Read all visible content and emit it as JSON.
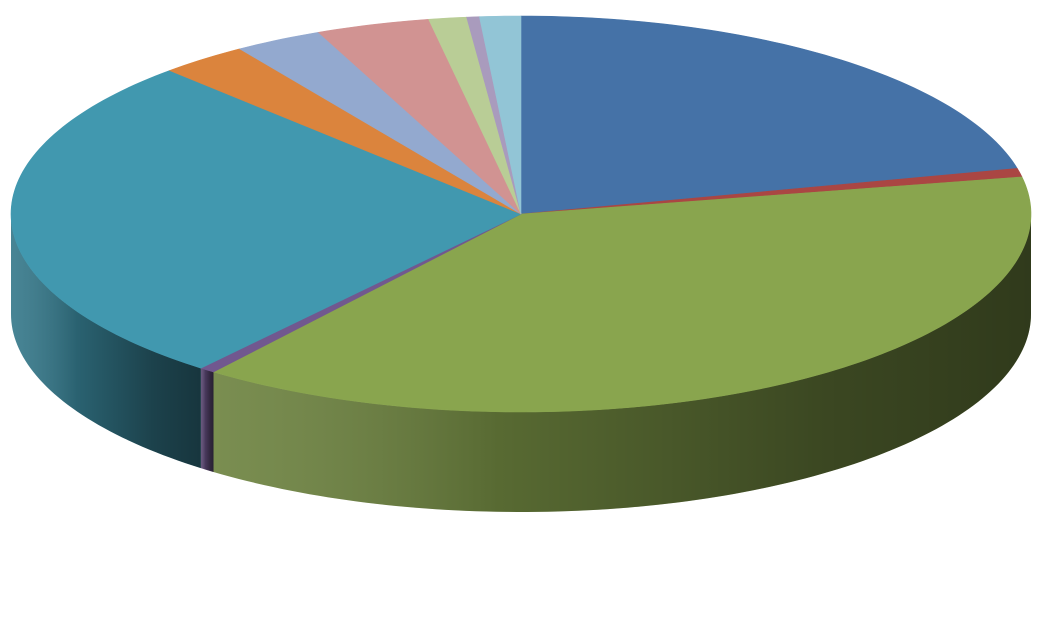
{
  "chart_data": {
    "type": "pie",
    "style": "3d-tilted",
    "title": "",
    "legend": "none",
    "data_labels": "none",
    "start": "top-center",
    "direction": "clockwise",
    "slices": [
      {
        "value": 21.3,
        "color": "#4572A7"
      },
      {
        "value": 0.7,
        "color": "#AA4643"
      },
      {
        "value": 38.3,
        "color": "#89A54E"
      },
      {
        "value": 0.5,
        "color": "#71588F"
      },
      {
        "value": 27.1,
        "color": "#4198AF"
      },
      {
        "value": 2.8,
        "color": "#DB843D"
      },
      {
        "value": 2.8,
        "color": "#93A9CF"
      },
      {
        "value": 3.6,
        "color": "#D19392"
      },
      {
        "value": 1.2,
        "color": "#B9CD96"
      },
      {
        "value": 0.4,
        "color": "#A99BBD"
      },
      {
        "value": 1.3,
        "color": "#92C5D6"
      }
    ]
  }
}
